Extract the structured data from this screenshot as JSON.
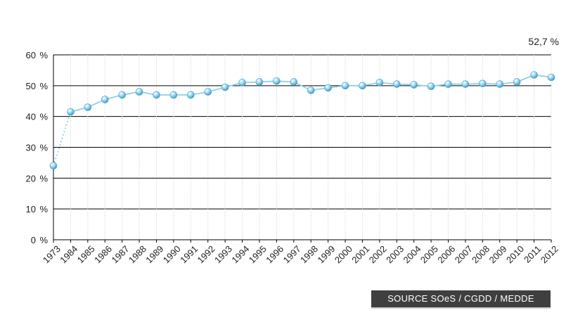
{
  "source": "SOURCE SOeS / CGDD / MEDDE",
  "chart_data": {
    "type": "line",
    "title": "",
    "xlabel": "",
    "ylabel": "",
    "ylim": [
      0,
      60
    ],
    "yticks": [
      0,
      10,
      20,
      30,
      40,
      50,
      60
    ],
    "ytick_labels": [
      "0 %",
      "10 %",
      "20 %",
      "30 %",
      "40 %",
      "50 %",
      "60 %"
    ],
    "categories": [
      "1973",
      "1984",
      "1985",
      "1986",
      "1987",
      "1988",
      "1989",
      "1990",
      "1991",
      "1992",
      "1993",
      "1994",
      "1995",
      "1996",
      "1997",
      "1998",
      "1999",
      "2000",
      "2001",
      "2002",
      "2003",
      "2004",
      "2005",
      "2006",
      "2007",
      "2008",
      "2009",
      "2010",
      "2011",
      "2012"
    ],
    "values": [
      24,
      41.5,
      43,
      45.5,
      47,
      48,
      47,
      47,
      47,
      48,
      49.5,
      51,
      51.2,
      51.5,
      51.2,
      48.5,
      49.3,
      50,
      50,
      51,
      50.5,
      50.3,
      49.8,
      50.5,
      50.5,
      50.7,
      50.5,
      51.2,
      53.5,
      52.7
    ],
    "dotted_segment": [
      "1973",
      "1984"
    ],
    "annotation": {
      "category": "2012",
      "label": "52,7 %"
    },
    "grid": true,
    "legend": "none",
    "colors": {
      "line": "#8fd0ec",
      "marker": "#5fb5dc",
      "grid": "#000000",
      "vgrid": "#cccccc"
    }
  }
}
